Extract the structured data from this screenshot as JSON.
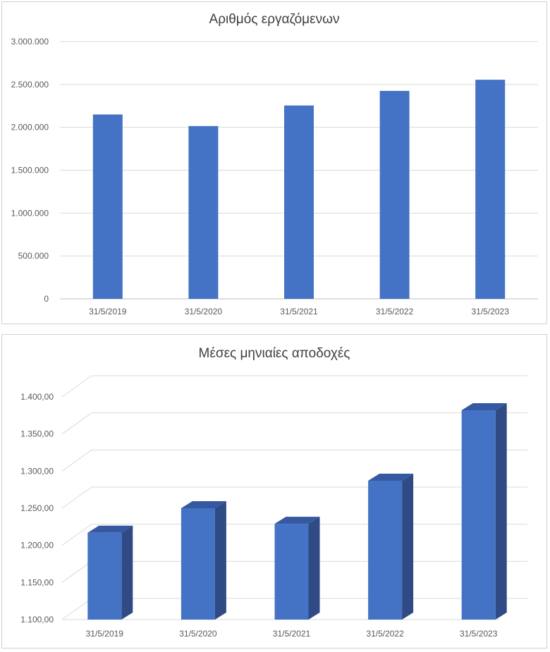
{
  "chart_data": [
    {
      "type": "bar",
      "title": "Αριθμός εργαζόμενων",
      "xlabel": "",
      "ylabel": "",
      "categories": [
        "31/5/2019",
        "31/5/2020",
        "31/5/2021",
        "31/5/2022",
        "31/5/2023"
      ],
      "values": [
        2150000,
        2015000,
        2255000,
        2425000,
        2555000
      ],
      "ylim": [
        0,
        3000000
      ],
      "yticks": [
        "0",
        "500.000",
        "1.000.000",
        "1.500.000",
        "2.000.000",
        "2.500.000",
        "3.000.000"
      ],
      "grid": true,
      "legend": "none",
      "color": "#4472c4"
    },
    {
      "type": "bar",
      "style": "3d",
      "title": "Μέσες μηνιαίες αποδοχές",
      "xlabel": "",
      "ylabel": "",
      "categories": [
        "31/5/2019",
        "31/5/2020",
        "31/5/2021",
        "31/5/2022",
        "31/5/2023"
      ],
      "values": [
        1217,
        1250,
        1229,
        1287,
        1382
      ],
      "ylim": [
        1100,
        1400
      ],
      "yticks": [
        "1.100,00",
        "1.150,00",
        "1.200,00",
        "1.250,00",
        "1.300,00",
        "1.350,00",
        "1.400,00"
      ],
      "grid": true,
      "legend": "none",
      "color": "#4472c4",
      "side_color": "#2f4a85",
      "top_color": "#3658a0"
    }
  ]
}
